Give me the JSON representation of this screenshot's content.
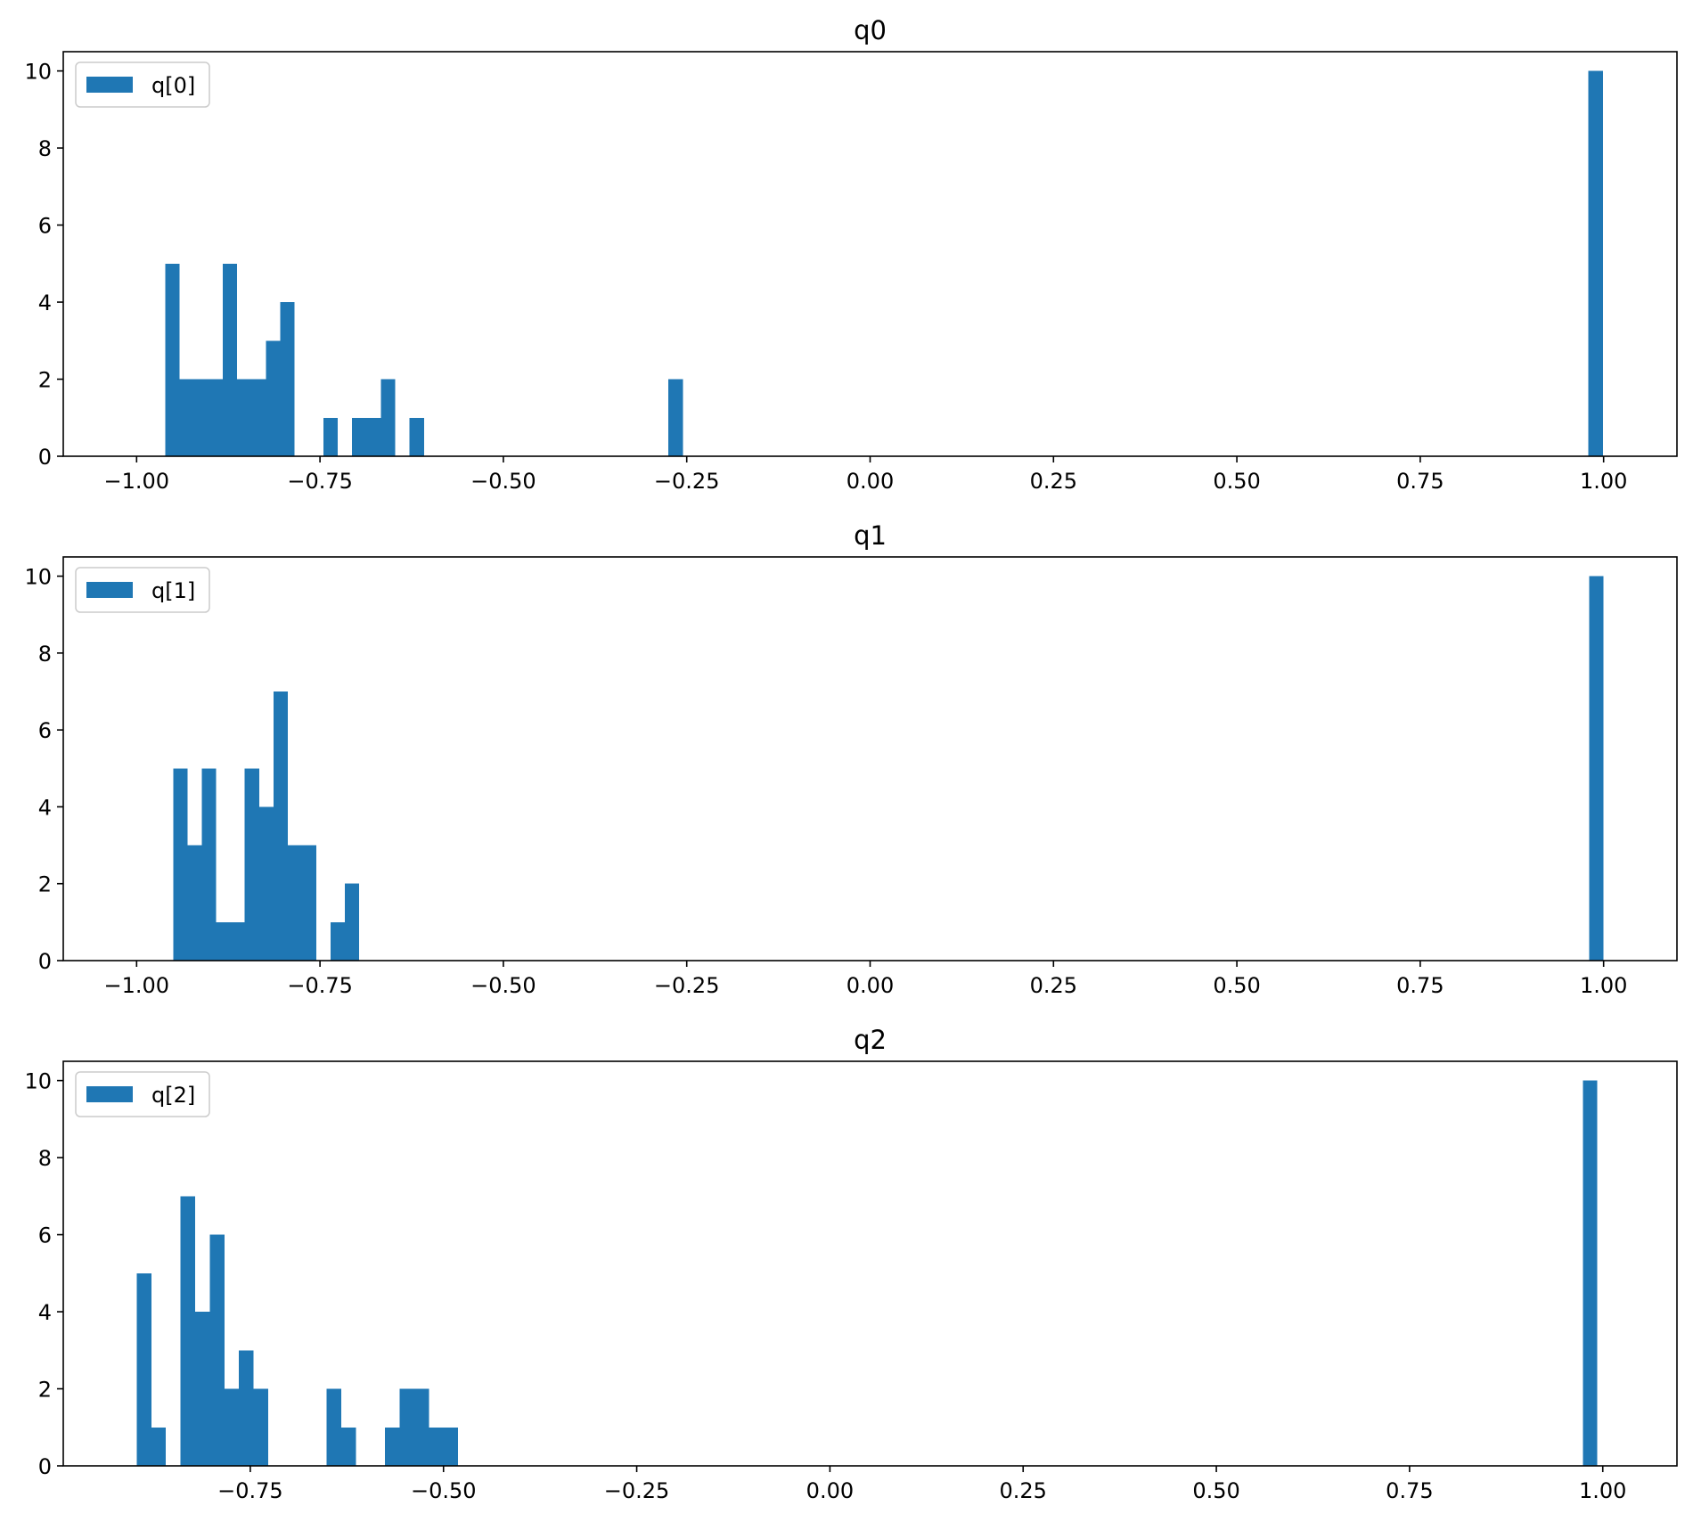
{
  "chart_data": [
    {
      "type": "bar",
      "title": "q0",
      "legend": [
        "q[0]"
      ],
      "legend_position": "upper left",
      "color": "#1f77b4",
      "xlim": [
        -1.1,
        1.1
      ],
      "ylim": [
        0,
        10.5
      ],
      "x_ticks": [
        -1.0,
        -0.75,
        -0.5,
        -0.25,
        0.0,
        0.25,
        0.5,
        0.75,
        1.0
      ],
      "x_tick_labels": [
        "−1.00",
        "−0.75",
        "−0.50",
        "−0.25",
        "0.00",
        "0.25",
        "0.50",
        "0.75",
        "1.00"
      ],
      "y_ticks": [
        0,
        2,
        4,
        6,
        8,
        10
      ],
      "y_tick_labels": [
        "0",
        "2",
        "4",
        "6",
        "8",
        "10"
      ],
      "bin_start": -0.961,
      "bin_width": 0.0196,
      "counts": [
        5,
        2,
        2,
        2,
        5,
        2,
        2,
        3,
        4,
        0,
        0,
        1,
        0,
        1,
        1,
        2,
        0,
        1,
        0,
        0,
        0,
        0,
        0,
        0,
        0,
        0,
        0,
        0,
        0,
        0,
        0,
        0,
        0,
        0,
        0,
        2,
        0,
        0,
        0,
        0,
        0,
        0,
        0,
        0,
        0,
        0,
        0,
        0,
        0,
        0,
        0,
        0,
        0,
        0,
        0,
        0,
        0,
        0,
        0,
        0,
        0,
        0,
        0,
        0,
        0,
        0,
        0,
        0,
        0,
        0,
        0,
        0,
        0,
        0,
        0,
        0,
        0,
        0,
        0,
        0,
        0,
        0,
        0,
        0,
        0,
        0,
        0,
        0,
        0,
        0,
        0,
        0,
        0,
        0,
        0,
        0,
        0,
        0,
        0,
        10
      ]
    },
    {
      "type": "bar",
      "title": "q1",
      "legend": [
        "q[1]"
      ],
      "legend_position": "upper left",
      "color": "#1f77b4",
      "xlim": [
        -1.1,
        1.1
      ],
      "ylim": [
        0,
        10.5
      ],
      "x_ticks": [
        -1.0,
        -0.75,
        -0.5,
        -0.25,
        0.0,
        0.25,
        0.5,
        0.75,
        1.0
      ],
      "x_tick_labels": [
        "−1.00",
        "−0.75",
        "−0.50",
        "−0.25",
        "0.00",
        "0.25",
        "0.50",
        "0.75",
        "1.00"
      ],
      "y_ticks": [
        0,
        2,
        4,
        6,
        8,
        10
      ],
      "y_tick_labels": [
        "0",
        "2",
        "4",
        "6",
        "8",
        "10"
      ],
      "bin_start": -0.95,
      "bin_width": 0.0195,
      "counts": [
        5,
        3,
        5,
        1,
        1,
        5,
        4,
        7,
        3,
        3,
        0,
        1,
        2,
        0,
        0,
        0,
        0,
        0,
        0,
        0,
        0,
        0,
        0,
        0,
        0,
        0,
        0,
        0,
        0,
        0,
        0,
        0,
        0,
        0,
        0,
        0,
        0,
        0,
        0,
        0,
        0,
        0,
        0,
        0,
        0,
        0,
        0,
        0,
        0,
        0,
        0,
        0,
        0,
        0,
        0,
        0,
        0,
        0,
        0,
        0,
        0,
        0,
        0,
        0,
        0,
        0,
        0,
        0,
        0,
        0,
        0,
        0,
        0,
        0,
        0,
        0,
        0,
        0,
        0,
        0,
        0,
        0,
        0,
        0,
        0,
        0,
        0,
        0,
        0,
        0,
        0,
        0,
        0,
        0,
        0,
        0,
        0,
        0,
        0,
        10
      ]
    },
    {
      "type": "bar",
      "title": "q2",
      "legend": [
        "q[2]"
      ],
      "legend_position": "upper left",
      "color": "#1f77b4",
      "xlim": [
        -0.992,
        1.096
      ],
      "ylim": [
        0,
        10.5
      ],
      "x_ticks": [
        -0.75,
        -0.5,
        -0.25,
        0.0,
        0.25,
        0.5,
        0.75,
        1.0
      ],
      "x_tick_labels": [
        "−0.75",
        "−0.50",
        "−0.25",
        "0.00",
        "0.25",
        "0.50",
        "0.75",
        "1.00"
      ],
      "y_ticks": [
        0,
        2,
        4,
        6,
        8,
        10
      ],
      "y_tick_labels": [
        "0",
        "2",
        "4",
        "6",
        "8",
        "10"
      ],
      "bin_start": -0.897,
      "bin_width": 0.0189,
      "counts": [
        5,
        1,
        0,
        7,
        4,
        6,
        2,
        3,
        2,
        0,
        0,
        0,
        0,
        2,
        1,
        0,
        0,
        1,
        2,
        2,
        1,
        1,
        0,
        0,
        0,
        0,
        0,
        0,
        0,
        0,
        0,
        0,
        0,
        0,
        0,
        0,
        0,
        0,
        0,
        0,
        0,
        0,
        0,
        0,
        0,
        0,
        0,
        0,
        0,
        0,
        0,
        0,
        0,
        0,
        0,
        0,
        0,
        0,
        0,
        0,
        0,
        0,
        0,
        0,
        0,
        0,
        0,
        0,
        0,
        0,
        0,
        0,
        0,
        0,
        0,
        0,
        0,
        0,
        0,
        0,
        0,
        0,
        0,
        0,
        0,
        0,
        0,
        0,
        0,
        0,
        0,
        0,
        0,
        0,
        0,
        0,
        0,
        0,
        0,
        10
      ]
    }
  ]
}
